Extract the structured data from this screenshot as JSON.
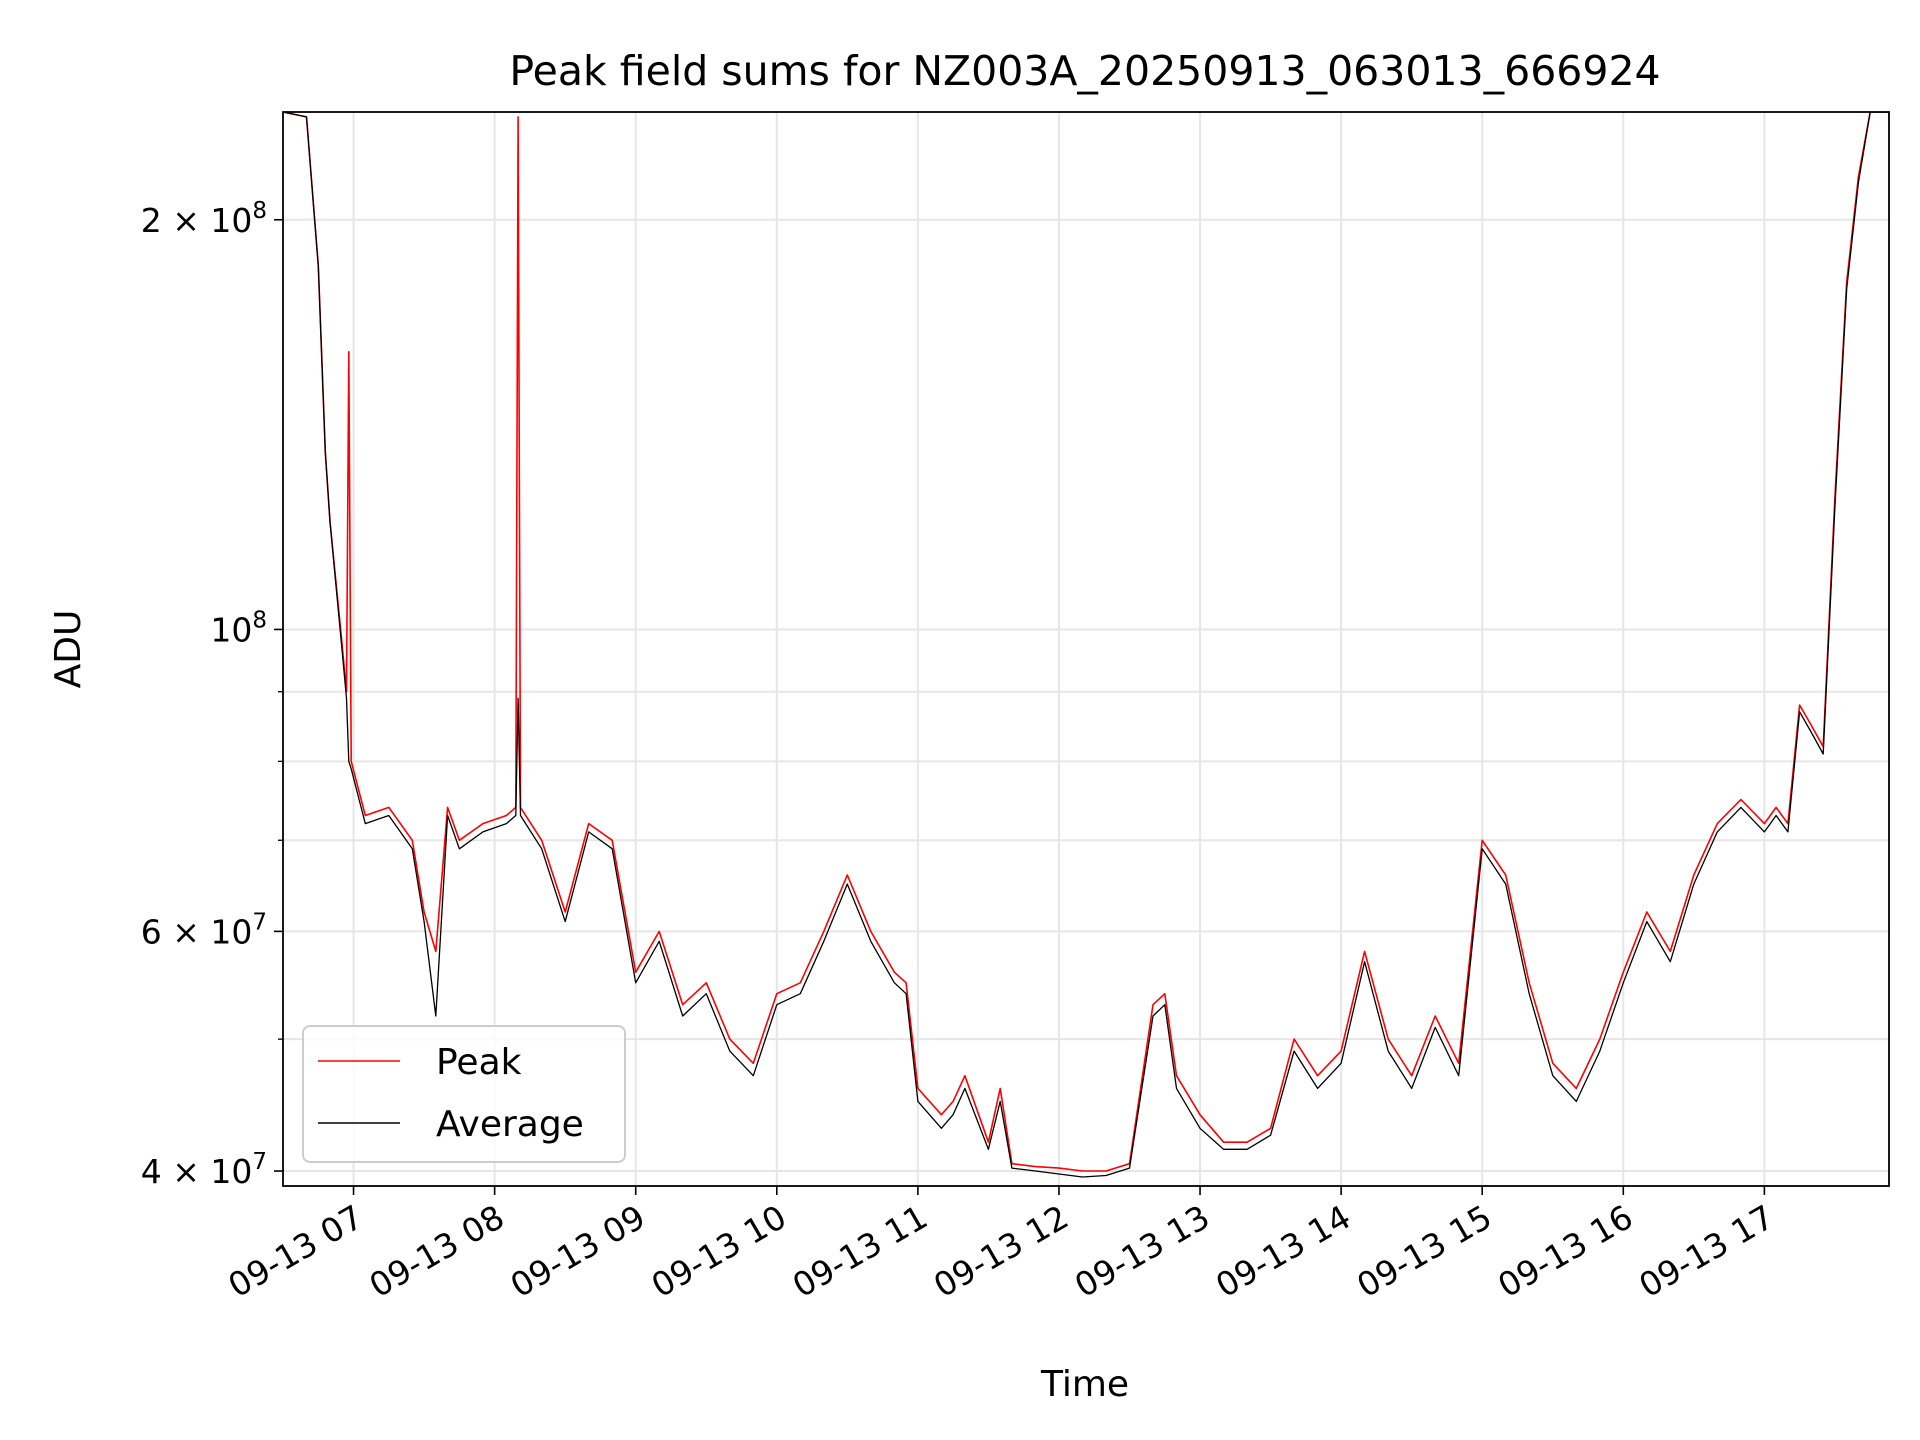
{
  "chart_data": {
    "type": "line",
    "title": "Peak field sums for NZ003A_20250913_063013_666924",
    "xlabel": "Time",
    "ylabel": "ADU",
    "y_scale": "log",
    "ylim": [
      39000000,
      240000000
    ],
    "xlim": [
      "2025-09-13T06:30",
      "2025-09-13T17:53"
    ],
    "grid": true,
    "legend_position": "lower-left",
    "x_tick_labels": [
      "09-13 07",
      "09-13 08",
      "09-13 09",
      "09-13 10",
      "09-13 11",
      "09-13 12",
      "09-13 13",
      "09-13 14",
      "09-13 15",
      "09-13 16",
      "09-13 17"
    ],
    "x_tick_values": [
      "2025-09-13T07:00",
      "2025-09-13T08:00",
      "2025-09-13T09:00",
      "2025-09-13T10:00",
      "2025-09-13T11:00",
      "2025-09-13T12:00",
      "2025-09-13T13:00",
      "2025-09-13T14:00",
      "2025-09-13T15:00",
      "2025-09-13T16:00",
      "2025-09-13T17:00"
    ],
    "y_ticks_major": [
      {
        "value": 40000000,
        "mantissa": "4",
        "exponent": "7"
      },
      {
        "value": 60000000,
        "mantissa": "6",
        "exponent": "7"
      },
      {
        "value": 100000000,
        "mantissa": "",
        "exponent": "8"
      },
      {
        "value": 200000000,
        "mantissa": "2",
        "exponent": "8"
      }
    ],
    "y_ticks_minor": [
      50000000,
      70000000,
      80000000,
      90000000
    ],
    "series": [
      {
        "name": "Peak",
        "color": "#ff0000",
        "x": [
          "2025-09-13T06:30",
          "2025-09-13T06:40",
          "2025-09-13T06:45",
          "2025-09-13T06:48",
          "2025-09-13T06:50",
          "2025-09-13T06:55",
          "2025-09-13T06:57",
          "2025-09-13T06:58",
          "2025-09-13T06:59",
          "2025-09-13T07:05",
          "2025-09-13T07:15",
          "2025-09-13T07:25",
          "2025-09-13T07:30",
          "2025-09-13T07:35",
          "2025-09-13T07:40",
          "2025-09-13T07:45",
          "2025-09-13T07:55",
          "2025-09-13T08:05",
          "2025-09-13T08:09",
          "2025-09-13T08:10",
          "2025-09-13T08:11",
          "2025-09-13T08:20",
          "2025-09-13T08:30",
          "2025-09-13T08:40",
          "2025-09-13T08:50",
          "2025-09-13T09:00",
          "2025-09-13T09:10",
          "2025-09-13T09:20",
          "2025-09-13T09:30",
          "2025-09-13T09:40",
          "2025-09-13T09:50",
          "2025-09-13T10:00",
          "2025-09-13T10:10",
          "2025-09-13T10:20",
          "2025-09-13T10:30",
          "2025-09-13T10:40",
          "2025-09-13T10:50",
          "2025-09-13T10:55",
          "2025-09-13T11:00",
          "2025-09-13T11:10",
          "2025-09-13T11:15",
          "2025-09-13T11:20",
          "2025-09-13T11:30",
          "2025-09-13T11:35",
          "2025-09-13T11:40",
          "2025-09-13T11:50",
          "2025-09-13T12:00",
          "2025-09-13T12:10",
          "2025-09-13T12:20",
          "2025-09-13T12:30",
          "2025-09-13T12:40",
          "2025-09-13T12:45",
          "2025-09-13T12:50",
          "2025-09-13T13:00",
          "2025-09-13T13:10",
          "2025-09-13T13:20",
          "2025-09-13T13:30",
          "2025-09-13T13:40",
          "2025-09-13T13:50",
          "2025-09-13T14:00",
          "2025-09-13T14:10",
          "2025-09-13T14:20",
          "2025-09-13T14:30",
          "2025-09-13T14:40",
          "2025-09-13T14:50",
          "2025-09-13T15:00",
          "2025-09-13T15:10",
          "2025-09-13T15:20",
          "2025-09-13T15:30",
          "2025-09-13T15:40",
          "2025-09-13T15:50",
          "2025-09-13T16:00",
          "2025-09-13T16:10",
          "2025-09-13T16:20",
          "2025-09-13T16:30",
          "2025-09-13T16:40",
          "2025-09-13T16:50",
          "2025-09-13T17:00",
          "2025-09-13T17:05",
          "2025-09-13T17:10",
          "2025-09-13T17:15",
          "2025-09-13T17:20",
          "2025-09-13T17:25",
          "2025-09-13T17:30",
          "2025-09-13T17:35",
          "2025-09-13T17:40",
          "2025-09-13T17:45",
          "2025-09-13T17:50",
          "2025-09-13T17:53"
        ],
        "values": [
          240000000,
          238000000,
          185000000,
          135000000,
          120000000,
          98000000,
          90000000,
          160000000,
          80000000,
          73000000,
          74000000,
          70000000,
          62000000,
          58000000,
          74000000,
          70000000,
          72000000,
          73000000,
          74000000,
          238000000,
          74000000,
          70000000,
          62000000,
          72000000,
          70000000,
          56000000,
          60000000,
          53000000,
          55000000,
          50000000,
          48000000,
          54000000,
          55000000,
          60000000,
          66000000,
          60000000,
          56000000,
          55000000,
          46000000,
          44000000,
          45000000,
          47000000,
          42000000,
          46000000,
          40500000,
          40300000,
          40200000,
          40000000,
          40000000,
          40500000,
          53000000,
          54000000,
          47000000,
          44000000,
          42000000,
          42000000,
          43000000,
          50000000,
          47000000,
          49000000,
          58000000,
          50000000,
          47000000,
          52000000,
          48000000,
          70000000,
          66000000,
          55000000,
          48000000,
          46000000,
          50000000,
          56000000,
          62000000,
          58000000,
          66000000,
          72000000,
          75000000,
          72000000,
          74000000,
          72000000,
          88000000,
          85000000,
          82000000,
          125000000,
          180000000,
          215000000,
          240000000,
          240000000,
          240000000
        ]
      },
      {
        "name": "Average",
        "color": "#000000",
        "x": [
          "2025-09-13T06:30",
          "2025-09-13T06:40",
          "2025-09-13T06:45",
          "2025-09-13T06:48",
          "2025-09-13T06:50",
          "2025-09-13T06:55",
          "2025-09-13T06:57",
          "2025-09-13T06:58",
          "2025-09-13T06:59",
          "2025-09-13T07:05",
          "2025-09-13T07:15",
          "2025-09-13T07:25",
          "2025-09-13T07:30",
          "2025-09-13T07:35",
          "2025-09-13T07:40",
          "2025-09-13T07:45",
          "2025-09-13T07:55",
          "2025-09-13T08:05",
          "2025-09-13T08:09",
          "2025-09-13T08:10",
          "2025-09-13T08:11",
          "2025-09-13T08:20",
          "2025-09-13T08:30",
          "2025-09-13T08:40",
          "2025-09-13T08:50",
          "2025-09-13T09:00",
          "2025-09-13T09:10",
          "2025-09-13T09:20",
          "2025-09-13T09:30",
          "2025-09-13T09:40",
          "2025-09-13T09:50",
          "2025-09-13T10:00",
          "2025-09-13T10:10",
          "2025-09-13T10:20",
          "2025-09-13T10:30",
          "2025-09-13T10:40",
          "2025-09-13T10:50",
          "2025-09-13T10:55",
          "2025-09-13T11:00",
          "2025-09-13T11:10",
          "2025-09-13T11:15",
          "2025-09-13T11:20",
          "2025-09-13T11:30",
          "2025-09-13T11:35",
          "2025-09-13T11:40",
          "2025-09-13T11:50",
          "2025-09-13T12:00",
          "2025-09-13T12:10",
          "2025-09-13T12:20",
          "2025-09-13T12:30",
          "2025-09-13T12:40",
          "2025-09-13T12:45",
          "2025-09-13T12:50",
          "2025-09-13T13:00",
          "2025-09-13T13:10",
          "2025-09-13T13:20",
          "2025-09-13T13:30",
          "2025-09-13T13:40",
          "2025-09-13T13:50",
          "2025-09-13T14:00",
          "2025-09-13T14:10",
          "2025-09-13T14:20",
          "2025-09-13T14:30",
          "2025-09-13T14:40",
          "2025-09-13T14:50",
          "2025-09-13T15:00",
          "2025-09-13T15:10",
          "2025-09-13T15:20",
          "2025-09-13T15:30",
          "2025-09-13T15:40",
          "2025-09-13T15:50",
          "2025-09-13T16:00",
          "2025-09-13T16:10",
          "2025-09-13T16:20",
          "2025-09-13T16:30",
          "2025-09-13T16:40",
          "2025-09-13T16:50",
          "2025-09-13T17:00",
          "2025-09-13T17:05",
          "2025-09-13T17:10",
          "2025-09-13T17:15",
          "2025-09-13T17:20",
          "2025-09-13T17:25",
          "2025-09-13T17:30",
          "2025-09-13T17:35",
          "2025-09-13T17:40",
          "2025-09-13T17:45",
          "2025-09-13T17:50",
          "2025-09-13T17:53"
        ],
        "values": [
          240000000,
          238000000,
          185000000,
          135000000,
          120000000,
          97000000,
          89000000,
          80000000,
          79000000,
          72000000,
          73000000,
          69000000,
          61000000,
          52000000,
          73000000,
          69000000,
          71000000,
          72000000,
          73000000,
          89000000,
          73000000,
          69000000,
          61000000,
          71000000,
          69000000,
          55000000,
          59000000,
          52000000,
          54000000,
          49000000,
          47000000,
          53000000,
          54000000,
          59000000,
          65000000,
          59000000,
          55000000,
          54000000,
          45000000,
          43000000,
          44000000,
          46000000,
          41500000,
          45000000,
          40200000,
          40000000,
          39800000,
          39600000,
          39700000,
          40200000,
          52000000,
          53000000,
          46000000,
          43000000,
          41500000,
          41500000,
          42500000,
          49000000,
          46000000,
          48000000,
          57000000,
          49000000,
          46000000,
          51000000,
          47000000,
          69000000,
          65000000,
          54000000,
          47000000,
          45000000,
          49000000,
          55000000,
          61000000,
          57000000,
          65000000,
          71000000,
          74000000,
          71000000,
          73000000,
          71000000,
          87000000,
          84000000,
          81000000,
          123000000,
          178000000,
          213000000,
          240000000,
          240000000,
          240000000
        ]
      }
    ]
  }
}
